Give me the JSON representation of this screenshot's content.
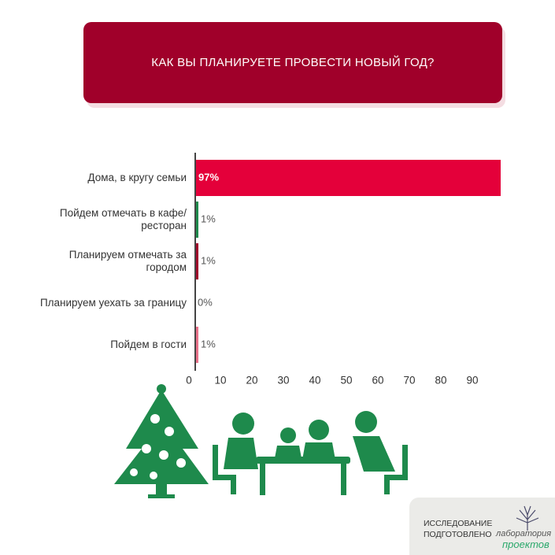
{
  "chart_data": {
    "type": "bar",
    "orientation": "horizontal",
    "title": "КАК ВЫ ПЛАНИРУЕТЕ ПРОВЕСТИ НОВЫЙ ГОД?",
    "categories": [
      "Дома, в кругу семьи",
      "Пойдем отмечать в кафе/ресторан",
      "Планируем отмечать за городом",
      "Планируем уехать за границу",
      "Пойдем в гости"
    ],
    "values": [
      97,
      1,
      1,
      0,
      1
    ],
    "value_labels": [
      "97%",
      "1%",
      "1%",
      "0%",
      "1%"
    ],
    "colors": [
      "#e4003a",
      "#1e8a4c",
      "#a0002a",
      "#999999",
      "#e87089"
    ],
    "xlim": [
      0,
      97
    ],
    "xticks": [
      0,
      10,
      20,
      30,
      40,
      50,
      60,
      70,
      80,
      90
    ]
  },
  "footer": {
    "line1": "ИССЛЕДОВАНИЕ",
    "line2": "ПОДГОТОВЛЕНО",
    "logo_top": "лаборатория",
    "logo_bottom": "проектов"
  }
}
